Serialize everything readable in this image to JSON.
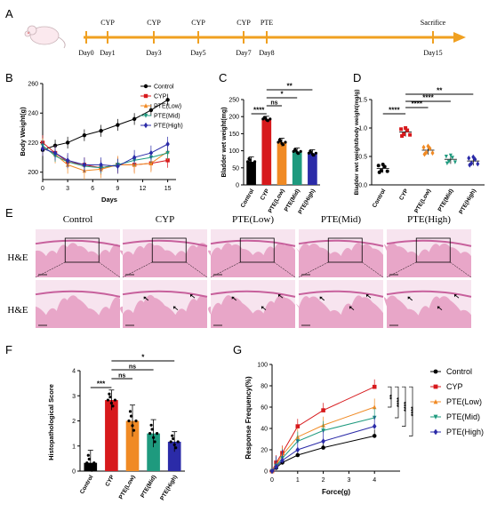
{
  "panels": {
    "A": {
      "letter": "A",
      "days": [
        "Day0",
        "Day1",
        "Day3",
        "Day5",
        "Day7",
        "Day8",
        "Day15"
      ],
      "events": [
        "CYP",
        "CYP",
        "CYP",
        "CYP",
        "PTE",
        "Sacrifice"
      ],
      "event_days": [
        "Day1",
        "Day3",
        "Day5",
        "Day7",
        "Day8",
        "Day15"
      ],
      "arrow_color": "#f0a020"
    },
    "B": {
      "letter": "B"
    },
    "C": {
      "letter": "C"
    },
    "D": {
      "letter": "D"
    },
    "E": {
      "letter": "E",
      "columns": [
        "Control",
        "CYP",
        "PTE(Low)",
        "PTE(Mid)",
        "PTE(High)"
      ],
      "row_labels": [
        "H&E",
        "H&E"
      ],
      "tissue_color": "#e8a6c8"
    },
    "F": {
      "letter": "F"
    },
    "G": {
      "letter": "G"
    }
  },
  "chart_data": [
    {
      "id": "B",
      "type": "line",
      "xlabel": "Days",
      "ylabel": "Body Weight(g)",
      "xlim": [
        0,
        16
      ],
      "ylim": [
        195,
        260
      ],
      "xticks": [
        0,
        3,
        6,
        9,
        12,
        15
      ],
      "yticks": [
        200,
        220,
        240,
        260
      ],
      "x": [
        0,
        1.5,
        3,
        5,
        7,
        9,
        11,
        13,
        15
      ],
      "legend_position": "top-right",
      "series": [
        {
          "name": "Control",
          "color": "#000000",
          "marker": "circle",
          "values": [
            215,
            218,
            220,
            225,
            228,
            232,
            236,
            242,
            249
          ]
        },
        {
          "name": "CYP",
          "color": "#d7191c",
          "marker": "square",
          "values": [
            220,
            213,
            207,
            205,
            203,
            205,
            205,
            206,
            208
          ]
        },
        {
          "name": "PTE(Low)",
          "color": "#f08a24",
          "marker": "triangle",
          "values": [
            217,
            212,
            205,
            201,
            202,
            205,
            205,
            206,
            214
          ]
        },
        {
          "name": "PTE(Mid)",
          "color": "#1e9a7e",
          "marker": "triangle-down",
          "values": [
            218,
            211,
            207,
            204,
            203,
            205,
            208,
            210,
            213
          ]
        },
        {
          "name": "PTE(High)",
          "color": "#2b2ba8",
          "marker": "diamond",
          "values": [
            216,
            213,
            208,
            205,
            205,
            204,
            210,
            213,
            219
          ]
        }
      ]
    },
    {
      "id": "C",
      "type": "bar",
      "ylabel": "Bladder wet weight(mg)",
      "ylim": [
        0,
        250
      ],
      "yticks": [
        0,
        50,
        100,
        150,
        200,
        250
      ],
      "categories": [
        "Control",
        "CYP",
        "PTE(Low)",
        "PTE(Mid)",
        "PTE(High)"
      ],
      "values": [
        68,
        193,
        125,
        98,
        93
      ],
      "errors": [
        14,
        8,
        12,
        10,
        10
      ],
      "colors": [
        "#000000",
        "#d7191c",
        "#f08a24",
        "#1e9a7e",
        "#2b2ba8"
      ],
      "significance": [
        {
          "from": "Control",
          "to": "CYP",
          "label": "****"
        },
        {
          "from": "CYP",
          "to": "PTE(Low)",
          "label": "ns"
        },
        {
          "from": "CYP",
          "to": "PTE(Mid)",
          "label": "*"
        },
        {
          "from": "CYP",
          "to": "PTE(High)",
          "label": "**"
        }
      ]
    },
    {
      "id": "D",
      "type": "scatter",
      "ylabel": "Bladder wet weight/body weight(mg/g)",
      "ylim": [
        0,
        1.5
      ],
      "yticks": [
        0.0,
        0.5,
        1.0,
        1.5
      ],
      "categories": [
        "Control",
        "CYP",
        "PTE(Low)",
        "PTE(Mid)",
        "PTE(High)"
      ],
      "means": [
        0.29,
        0.93,
        0.61,
        0.45,
        0.42
      ],
      "colors": [
        "#000000",
        "#d7191c",
        "#f08a24",
        "#1e9a7e",
        "#2b2ba8"
      ],
      "markers": [
        "circle",
        "square",
        "diamond",
        "triangle-down",
        "diamond"
      ],
      "significance": [
        {
          "from": "Control",
          "to": "CYP",
          "label": "****"
        },
        {
          "from": "CYP",
          "to": "PTE(Low)",
          "label": "****"
        },
        {
          "from": "CYP",
          "to": "PTE(Mid)",
          "label": "****"
        },
        {
          "from": "CYP",
          "to": "PTE(High)",
          "label": "**"
        }
      ]
    },
    {
      "id": "F",
      "type": "bar",
      "ylabel": "Histopathological Score",
      "ylim": [
        0,
        4
      ],
      "yticks": [
        0,
        1,
        2,
        3,
        4
      ],
      "categories": [
        "Control",
        "CYP",
        "PTE(Low)",
        "PTE(Mid)",
        "PTE(High)"
      ],
      "values": [
        0.33,
        2.83,
        2.0,
        1.5,
        1.17
      ],
      "errors": [
        0.5,
        0.4,
        0.63,
        0.55,
        0.4
      ],
      "colors": [
        "#000000",
        "#d7191c",
        "#f08a24",
        "#1e9a7e",
        "#2b2ba8"
      ],
      "significance": [
        {
          "from": "Control",
          "to": "CYP",
          "label": "***"
        },
        {
          "from": "CYP",
          "to": "PTE(Low)",
          "label": "ns"
        },
        {
          "from": "CYP",
          "to": "PTE(Mid)",
          "label": "ns"
        },
        {
          "from": "CYP",
          "to": "PTE(High)",
          "label": "*"
        }
      ]
    },
    {
      "id": "G",
      "type": "line",
      "xlabel": "Force(g)",
      "ylabel": "Response Frequency(%)",
      "xlim": [
        0,
        5
      ],
      "ylim": [
        0,
        100
      ],
      "xticks": [
        0,
        1,
        2,
        3,
        4
      ],
      "yticks": [
        0,
        20,
        40,
        60,
        80,
        100
      ],
      "x": [
        0,
        0.16,
        0.4,
        1,
        2,
        4
      ],
      "legend_position": "right",
      "series": [
        {
          "name": "Control",
          "color": "#000000",
          "marker": "circle",
          "values": [
            0,
            3,
            8,
            15,
            22,
            33
          ]
        },
        {
          "name": "CYP",
          "color": "#d7191c",
          "marker": "square",
          "values": [
            0,
            8,
            17,
            42,
            57,
            79
          ]
        },
        {
          "name": "PTE(Low)",
          "color": "#f08a24",
          "marker": "triangle",
          "values": [
            0,
            6,
            15,
            32,
            43,
            60
          ]
        },
        {
          "name": "PTE(Mid)",
          "color": "#1e9a7e",
          "marker": "triangle-down",
          "values": [
            0,
            5,
            12,
            28,
            38,
            50
          ]
        },
        {
          "name": "PTE(High)",
          "color": "#2b2ba8",
          "marker": "diamond",
          "values": [
            0,
            4,
            10,
            20,
            28,
            42
          ]
        }
      ],
      "significance": [
        "**",
        "****",
        "****",
        "****"
      ]
    }
  ]
}
